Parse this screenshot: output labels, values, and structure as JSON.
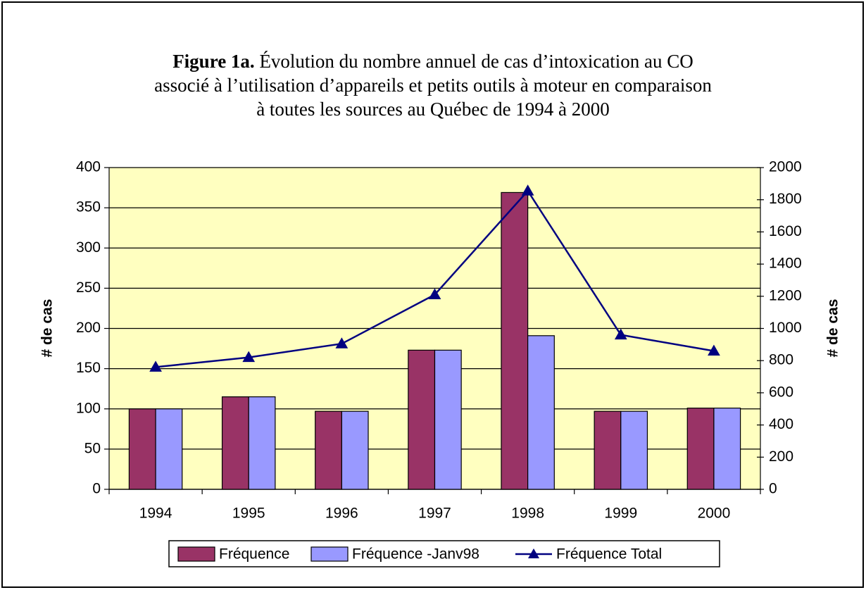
{
  "chart_data": {
    "type": "bar",
    "title_bold": "Figure 1a.",
    "title": [
      "Évolution du nombre annuel de cas d’intoxication au CO",
      "associé à l’utilisation d’appareils et petits outils à moteur en comparaison",
      "à toutes les sources au Québec de 1994 à 2000"
    ],
    "ylabel": "# de cas",
    "y2label": "# de cas",
    "categories": [
      "1994",
      "1995",
      "1996",
      "1997",
      "1998",
      "1999",
      "2000"
    ],
    "series": [
      {
        "name": "Fréquence",
        "type": "bar",
        "color": "#993366",
        "values": [
          100,
          115,
          97,
          173,
          369,
          97,
          101
        ]
      },
      {
        "name": "Fréquence -Janv98",
        "type": "bar",
        "color": "#9999ff",
        "values": [
          100,
          115,
          97,
          173,
          191,
          97,
          101
        ]
      },
      {
        "name": "Fréquence Total",
        "type": "line",
        "axis": "y2",
        "color": "#000080",
        "values": [
          760,
          820,
          905,
          1210,
          1855,
          960,
          860
        ]
      }
    ],
    "ylim": [
      0,
      400
    ],
    "yticks": [
      0,
      50,
      100,
      150,
      200,
      250,
      300,
      350,
      400
    ],
    "y2lim": [
      0,
      2000
    ],
    "y2ticks": [
      0,
      200,
      400,
      600,
      800,
      1000,
      1200,
      1400,
      1600,
      1800,
      2000
    ],
    "grid": true,
    "legend": "bottom",
    "plot_background": "#ffffc0"
  }
}
